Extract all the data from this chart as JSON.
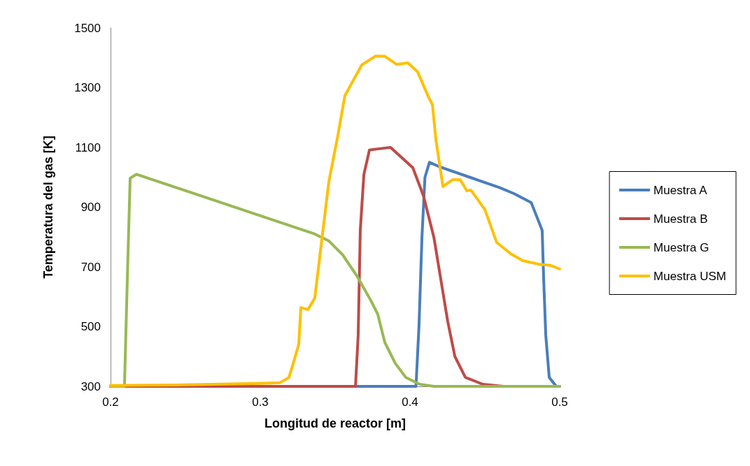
{
  "chart_data": {
    "type": "line",
    "xlabel": "Longitud de reactor [m]",
    "ylabel": "Temperatura del gas [K]",
    "xlim": [
      0.2,
      0.5
    ],
    "xticks": [
      0.2,
      0.3,
      0.4,
      0.5
    ],
    "ylim": [
      300,
      1500
    ],
    "yticks": [
      300,
      500,
      700,
      900,
      1100,
      1300,
      1500
    ],
    "grid": false,
    "legend": "right",
    "marker": "none",
    "line_style": "solid",
    "series": [
      {
        "name": "Muestra A",
        "color": "#4a7ebb",
        "x": [
          0.2,
          0.404,
          0.406,
          0.408,
          0.41,
          0.413,
          0.42,
          0.44,
          0.46,
          0.4696,
          0.481,
          0.4883,
          0.4893,
          0.4907,
          0.493,
          0.4977,
          0.5
        ],
        "values": [
          300,
          300,
          500,
          800,
          1000,
          1050,
          1035,
          1000,
          965,
          945,
          915,
          822,
          658,
          471,
          330,
          300,
          300
        ]
      },
      {
        "name": "Muestra B",
        "color": "#be4b48",
        "x": [
          0.2,
          0.3636,
          0.3654,
          0.3668,
          0.3692,
          0.3729,
          0.3785,
          0.387,
          0.4019,
          0.409,
          0.416,
          0.4206,
          0.4252,
          0.43,
          0.437,
          0.4486,
          0.4626
        ],
        "values": [
          300,
          300,
          471,
          822,
          1009,
          1091,
          1095,
          1100,
          1032,
          938,
          798,
          658,
          518,
          400,
          330,
          307,
          300
        ]
      },
      {
        "name": "Muestra G",
        "color": "#98b954",
        "x": [
          0.2,
          0.2093,
          0.2112,
          0.2131,
          0.2173,
          0.28,
          0.3364,
          0.3458,
          0.3551,
          0.3645,
          0.3738,
          0.3785,
          0.3832,
          0.3902,
          0.3972,
          0.4065,
          0.416,
          0.5
        ],
        "values": [
          300,
          300,
          658,
          997,
          1010,
          905,
          810,
          787,
          740,
          670,
          588,
          541,
          447,
          377,
          330,
          307,
          300,
          300
        ]
      },
      {
        "name": "Muestra USM",
        "color": "#ffc000",
        "x": [
          0.2,
          0.25,
          0.3,
          0.313,
          0.3192,
          0.321,
          0.3257,
          0.3271,
          0.3318,
          0.3364,
          0.3411,
          0.3458,
          0.3519,
          0.3565,
          0.3678,
          0.3771,
          0.3832,
          0.3911,
          0.3986,
          0.4051,
          0.4126,
          0.415,
          0.4173,
          0.422,
          0.4285,
          0.4336,
          0.4379,
          0.4407,
          0.45,
          0.4579,
          0.4673,
          0.4752,
          0.486,
          0.4939,
          0.5
        ],
        "values": [
          303,
          305,
          310,
          312,
          330,
          360,
          440,
          564,
          557,
          595,
          791,
          985,
          1142,
          1273,
          1376,
          1406,
          1405,
          1378,
          1383,
          1353,
          1266,
          1243,
          1126,
          969,
          992,
          992,
          955,
          957,
          892,
          782,
          744,
          721,
          709,
          705,
          693
        ]
      }
    ]
  }
}
